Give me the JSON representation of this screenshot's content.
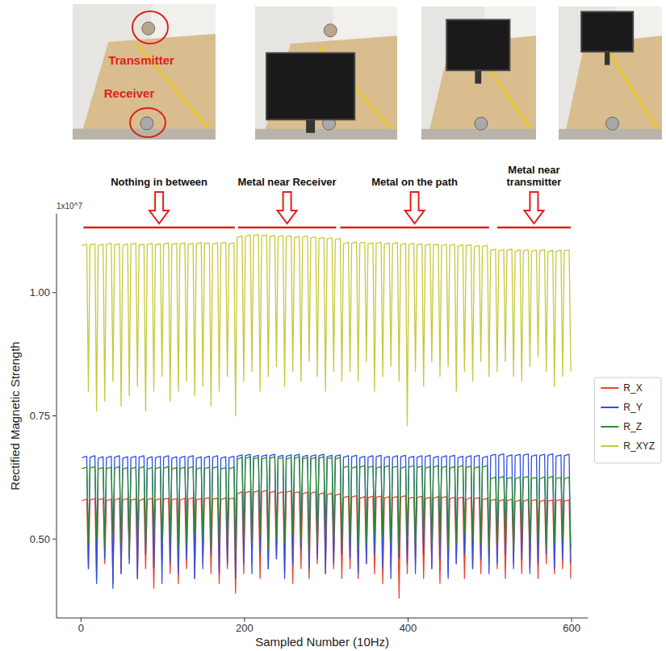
{
  "photo_labels": [
    "Transmitter",
    "Receiver"
  ],
  "chart_data": {
    "type": "line",
    "x_label": "Sampled Number (10Hz)",
    "y_label": "Rectified Magnetic Strength",
    "y_offset_text": "1x10^7",
    "xlim": [
      -30,
      620
    ],
    "ylim": [
      0.34,
      1.16
    ],
    "xticks": [
      0,
      200,
      400,
      600
    ],
    "yticks": [
      {
        "value": 0.5,
        "label": "0.50"
      },
      {
        "value": 0.75,
        "label": "0.75"
      },
      {
        "value": 1,
        "label": "1.00"
      }
    ],
    "grid": false,
    "legend": "right",
    "annotations": [
      {
        "text": "Nothing in between",
        "x": [
          3,
          188
        ]
      },
      {
        "text": "Metal near Receiver",
        "x": [
          192,
          312
        ]
      },
      {
        "text": "Metal on the path",
        "x": [
          317,
          499
        ]
      },
      {
        "text": "Metal near transmitter",
        "x": [
          509,
          599
        ]
      }
    ],
    "x": [
      1,
      7,
      9,
      11,
      17,
      19,
      21,
      27,
      29,
      31,
      37,
      39,
      41,
      47,
      49,
      51,
      57,
      59,
      61,
      67,
      69,
      71,
      77,
      79,
      81,
      87,
      89,
      91,
      97,
      99,
      101,
      107,
      109,
      111,
      117,
      119,
      121,
      127,
      129,
      131,
      137,
      139,
      141,
      147,
      149,
      151,
      157,
      159,
      161,
      167,
      169,
      171,
      177,
      179,
      181,
      187,
      189,
      191,
      197,
      199,
      201,
      207,
      209,
      211,
      217,
      219,
      221,
      227,
      229,
      231,
      237,
      239,
      241,
      247,
      249,
      251,
      257,
      259,
      261,
      267,
      269,
      271,
      277,
      279,
      281,
      287,
      289,
      291,
      297,
      299,
      301,
      307,
      309,
      311,
      317,
      319,
      321,
      327,
      329,
      331,
      337,
      339,
      341,
      347,
      349,
      351,
      357,
      359,
      361,
      367,
      369,
      371,
      377,
      379,
      381,
      387,
      389,
      391,
      397,
      399,
      401,
      407,
      409,
      411,
      417,
      419,
      421,
      427,
      429,
      431,
      437,
      439,
      441,
      447,
      449,
      451,
      457,
      459,
      461,
      467,
      469,
      471,
      477,
      479,
      481,
      487,
      489,
      491,
      497,
      499,
      501,
      507,
      509,
      511,
      517,
      519,
      521,
      527,
      529,
      531,
      537,
      539,
      541,
      547,
      549,
      551,
      557,
      559,
      561,
      567,
      569,
      571,
      577,
      579,
      581,
      587,
      589,
      591,
      597,
      599
    ],
    "series": [
      {
        "name": "R_X",
        "color": "#e8452c",
        "values": [
          0.578,
          0.581,
          0.44,
          0.579,
          0.582,
          0.42,
          0.58,
          0.582,
          0.45,
          0.578,
          0.581,
          0.41,
          0.579,
          0.583,
          0.43,
          0.58,
          0.582,
          0.46,
          0.579,
          0.581,
          0.42,
          0.578,
          0.582,
          0.44,
          0.58,
          0.583,
          0.4,
          0.579,
          0.582,
          0.45,
          0.581,
          0.583,
          0.43,
          0.58,
          0.582,
          0.41,
          0.579,
          0.583,
          0.44,
          0.581,
          0.584,
          0.42,
          0.58,
          0.582,
          0.45,
          0.582,
          0.584,
          0.43,
          0.581,
          0.583,
          0.41,
          0.58,
          0.584,
          0.44,
          0.582,
          0.583,
          0.39,
          0.592,
          0.596,
          0.43,
          0.594,
          0.597,
          0.45,
          0.595,
          0.598,
          0.42,
          0.596,
          0.599,
          0.44,
          0.594,
          0.597,
          0.46,
          0.593,
          0.596,
          0.43,
          0.595,
          0.598,
          0.41,
          0.594,
          0.596,
          0.44,
          0.592,
          0.595,
          0.42,
          0.593,
          0.596,
          0.45,
          0.591,
          0.594,
          0.43,
          0.59,
          0.593,
          0.44,
          0.589,
          0.592,
          0.42,
          0.584,
          0.587,
          0.44,
          0.585,
          0.588,
          0.42,
          0.583,
          0.586,
          0.45,
          0.584,
          0.587,
          0.43,
          0.585,
          0.587,
          0.41,
          0.583,
          0.586,
          0.44,
          0.584,
          0.586,
          0.38,
          0.585,
          0.588,
          0.43,
          0.583,
          0.585,
          0.45,
          0.584,
          0.587,
          0.42,
          0.582,
          0.585,
          0.44,
          0.583,
          0.586,
          0.41,
          0.584,
          0.586,
          0.43,
          0.582,
          0.585,
          0.45,
          0.583,
          0.585,
          0.42,
          0.581,
          0.584,
          0.44,
          0.582,
          0.584,
          0.43,
          0.58,
          0.583,
          0.45,
          0.578,
          0.581,
          0.44,
          0.577,
          0.58,
          0.42,
          0.578,
          0.581,
          0.45,
          0.576,
          0.579,
          0.43,
          0.577,
          0.58,
          0.44,
          0.578,
          0.58,
          0.42,
          0.576,
          0.579,
          0.45,
          0.577,
          0.579,
          0.43,
          0.578,
          0.58,
          0.44,
          0.577,
          0.579,
          0.42
        ]
      },
      {
        "name": "R_Y",
        "color": "#2d4fe6",
        "values": [
          0.665,
          0.668,
          0.44,
          0.666,
          0.669,
          0.41,
          0.664,
          0.667,
          0.46,
          0.665,
          0.668,
          0.4,
          0.666,
          0.669,
          0.43,
          0.664,
          0.667,
          0.45,
          0.665,
          0.668,
          0.42,
          0.666,
          0.669,
          0.47,
          0.664,
          0.667,
          0.44,
          0.665,
          0.668,
          0.41,
          0.666,
          0.669,
          0.45,
          0.664,
          0.667,
          0.43,
          0.665,
          0.668,
          0.46,
          0.666,
          0.669,
          0.42,
          0.664,
          0.667,
          0.44,
          0.665,
          0.668,
          0.47,
          0.666,
          0.669,
          0.43,
          0.664,
          0.667,
          0.45,
          0.665,
          0.668,
          0.42,
          0.668,
          0.671,
          0.45,
          0.669,
          0.672,
          0.43,
          0.667,
          0.67,
          0.47,
          0.668,
          0.671,
          0.44,
          0.669,
          0.672,
          0.46,
          0.667,
          0.67,
          0.42,
          0.668,
          0.671,
          0.45,
          0.669,
          0.672,
          0.48,
          0.667,
          0.67,
          0.44,
          0.668,
          0.671,
          0.46,
          0.669,
          0.672,
          0.43,
          0.667,
          0.67,
          0.45,
          0.668,
          0.671,
          0.47,
          0.666,
          0.669,
          0.46,
          0.667,
          0.67,
          0.43,
          0.665,
          0.668,
          0.45,
          0.666,
          0.669,
          0.47,
          0.667,
          0.67,
          0.44,
          0.665,
          0.668,
          0.42,
          0.666,
          0.669,
          0.46,
          0.667,
          0.67,
          0.45,
          0.665,
          0.668,
          0.43,
          0.666,
          0.669,
          0.47,
          0.667,
          0.67,
          0.44,
          0.665,
          0.668,
          0.46,
          0.666,
          0.669,
          0.42,
          0.667,
          0.67,
          0.45,
          0.665,
          0.668,
          0.47,
          0.666,
          0.669,
          0.44,
          0.667,
          0.67,
          0.46,
          0.665,
          0.668,
          0.43,
          0.669,
          0.672,
          0.45,
          0.67,
          0.673,
          0.47,
          0.668,
          0.671,
          0.44,
          0.669,
          0.672,
          0.46,
          0.67,
          0.673,
          0.43,
          0.668,
          0.671,
          0.45,
          0.669,
          0.672,
          0.47,
          0.67,
          0.673,
          0.44,
          0.668,
          0.671,
          0.46,
          0.669,
          0.672,
          0.45
        ]
      },
      {
        "name": "R_Z",
        "color": "#2e8b2e",
        "values": [
          0.643,
          0.646,
          0.49,
          0.644,
          0.647,
          0.5,
          0.642,
          0.645,
          0.48,
          0.643,
          0.646,
          0.51,
          0.644,
          0.647,
          0.49,
          0.642,
          0.645,
          0.47,
          0.643,
          0.646,
          0.5,
          0.644,
          0.647,
          0.48,
          0.642,
          0.645,
          0.51,
          0.643,
          0.646,
          0.49,
          0.644,
          0.647,
          0.5,
          0.642,
          0.645,
          0.48,
          0.643,
          0.646,
          0.49,
          0.644,
          0.647,
          0.51,
          0.642,
          0.645,
          0.5,
          0.643,
          0.646,
          0.48,
          0.644,
          0.647,
          0.49,
          0.642,
          0.645,
          0.5,
          0.643,
          0.646,
          0.47,
          0.662,
          0.666,
          0.5,
          0.664,
          0.667,
          0.49,
          0.663,
          0.665,
          0.51,
          0.662,
          0.666,
          0.48,
          0.664,
          0.667,
          0.5,
          0.663,
          0.665,
          0.49,
          0.662,
          0.666,
          0.51,
          0.664,
          0.667,
          0.5,
          0.663,
          0.665,
          0.48,
          0.662,
          0.666,
          0.49,
          0.664,
          0.667,
          0.51,
          0.663,
          0.665,
          0.5,
          0.662,
          0.666,
          0.49,
          0.645,
          0.648,
          0.5,
          0.644,
          0.647,
          0.48,
          0.646,
          0.649,
          0.49,
          0.645,
          0.648,
          0.51,
          0.644,
          0.647,
          0.5,
          0.646,
          0.649,
          0.49,
          0.645,
          0.648,
          0.47,
          0.644,
          0.647,
          0.5,
          0.646,
          0.649,
          0.48,
          0.645,
          0.648,
          0.51,
          0.644,
          0.647,
          0.49,
          0.646,
          0.649,
          0.5,
          0.645,
          0.648,
          0.48,
          0.644,
          0.647,
          0.49,
          0.646,
          0.649,
          0.51,
          0.645,
          0.648,
          0.5,
          0.644,
          0.647,
          0.49,
          0.646,
          0.649,
          0.48,
          0.622,
          0.626,
          0.49,
          0.624,
          0.627,
          0.5,
          0.623,
          0.625,
          0.48,
          0.622,
          0.626,
          0.51,
          0.624,
          0.627,
          0.49,
          0.623,
          0.625,
          0.5,
          0.622,
          0.626,
          0.48,
          0.624,
          0.627,
          0.49,
          0.623,
          0.625,
          0.5,
          0.622,
          0.626,
          0.48
        ]
      },
      {
        "name": "R_XYZ",
        "color": "#c8c83c",
        "values": [
          1.095,
          1.098,
          0.8,
          1.097,
          1.099,
          0.76,
          1.096,
          1.098,
          0.78,
          1.098,
          1.1,
          0.82,
          1.097,
          1.099,
          0.77,
          1.096,
          1.099,
          0.79,
          1.098,
          1.1,
          0.81,
          1.097,
          1.098,
          0.76,
          1.098,
          1.1,
          0.8,
          1.097,
          1.099,
          0.83,
          1.099,
          1.101,
          0.78,
          1.098,
          1.1,
          0.8,
          1.099,
          1.101,
          0.82,
          1.098,
          1.1,
          0.79,
          1.099,
          1.102,
          0.81,
          1.1,
          1.101,
          0.77,
          1.099,
          1.101,
          0.8,
          1.1,
          1.102,
          0.83,
          1.099,
          1.101,
          0.75,
          1.112,
          1.115,
          0.82,
          1.114,
          1.117,
          0.84,
          1.116,
          1.118,
          0.8,
          1.115,
          1.117,
          0.83,
          1.114,
          1.116,
          0.85,
          1.113,
          1.116,
          0.81,
          1.114,
          1.115,
          0.84,
          1.112,
          1.114,
          0.82,
          1.113,
          1.115,
          0.86,
          1.111,
          1.113,
          0.83,
          1.11,
          1.112,
          0.8,
          1.109,
          1.111,
          0.84,
          1.108,
          1.11,
          0.82,
          1.099,
          1.102,
          0.84,
          1.1,
          1.103,
          0.82,
          1.101,
          1.102,
          0.86,
          1.099,
          1.101,
          0.8,
          1.1,
          1.102,
          0.83,
          1.098,
          1.101,
          0.85,
          1.099,
          1.102,
          0.82,
          1.097,
          1.1,
          0.73,
          1.098,
          1.1,
          0.84,
          1.097,
          1.099,
          0.81,
          1.096,
          1.099,
          0.86,
          1.097,
          1.098,
          0.83,
          1.095,
          1.098,
          0.85,
          1.096,
          1.098,
          0.8,
          1.094,
          1.097,
          0.84,
          1.095,
          1.097,
          0.82,
          1.093,
          1.096,
          0.86,
          1.094,
          1.096,
          0.83,
          1.086,
          1.088,
          0.84,
          1.085,
          1.087,
          0.86,
          1.086,
          1.088,
          0.83,
          1.084,
          1.087,
          0.82,
          1.085,
          1.087,
          0.85,
          1.084,
          1.086,
          0.87,
          1.085,
          1.087,
          0.84,
          1.083,
          1.086,
          0.81,
          1.084,
          1.086,
          0.83,
          1.085,
          1.087,
          0.84
        ]
      }
    ]
  }
}
